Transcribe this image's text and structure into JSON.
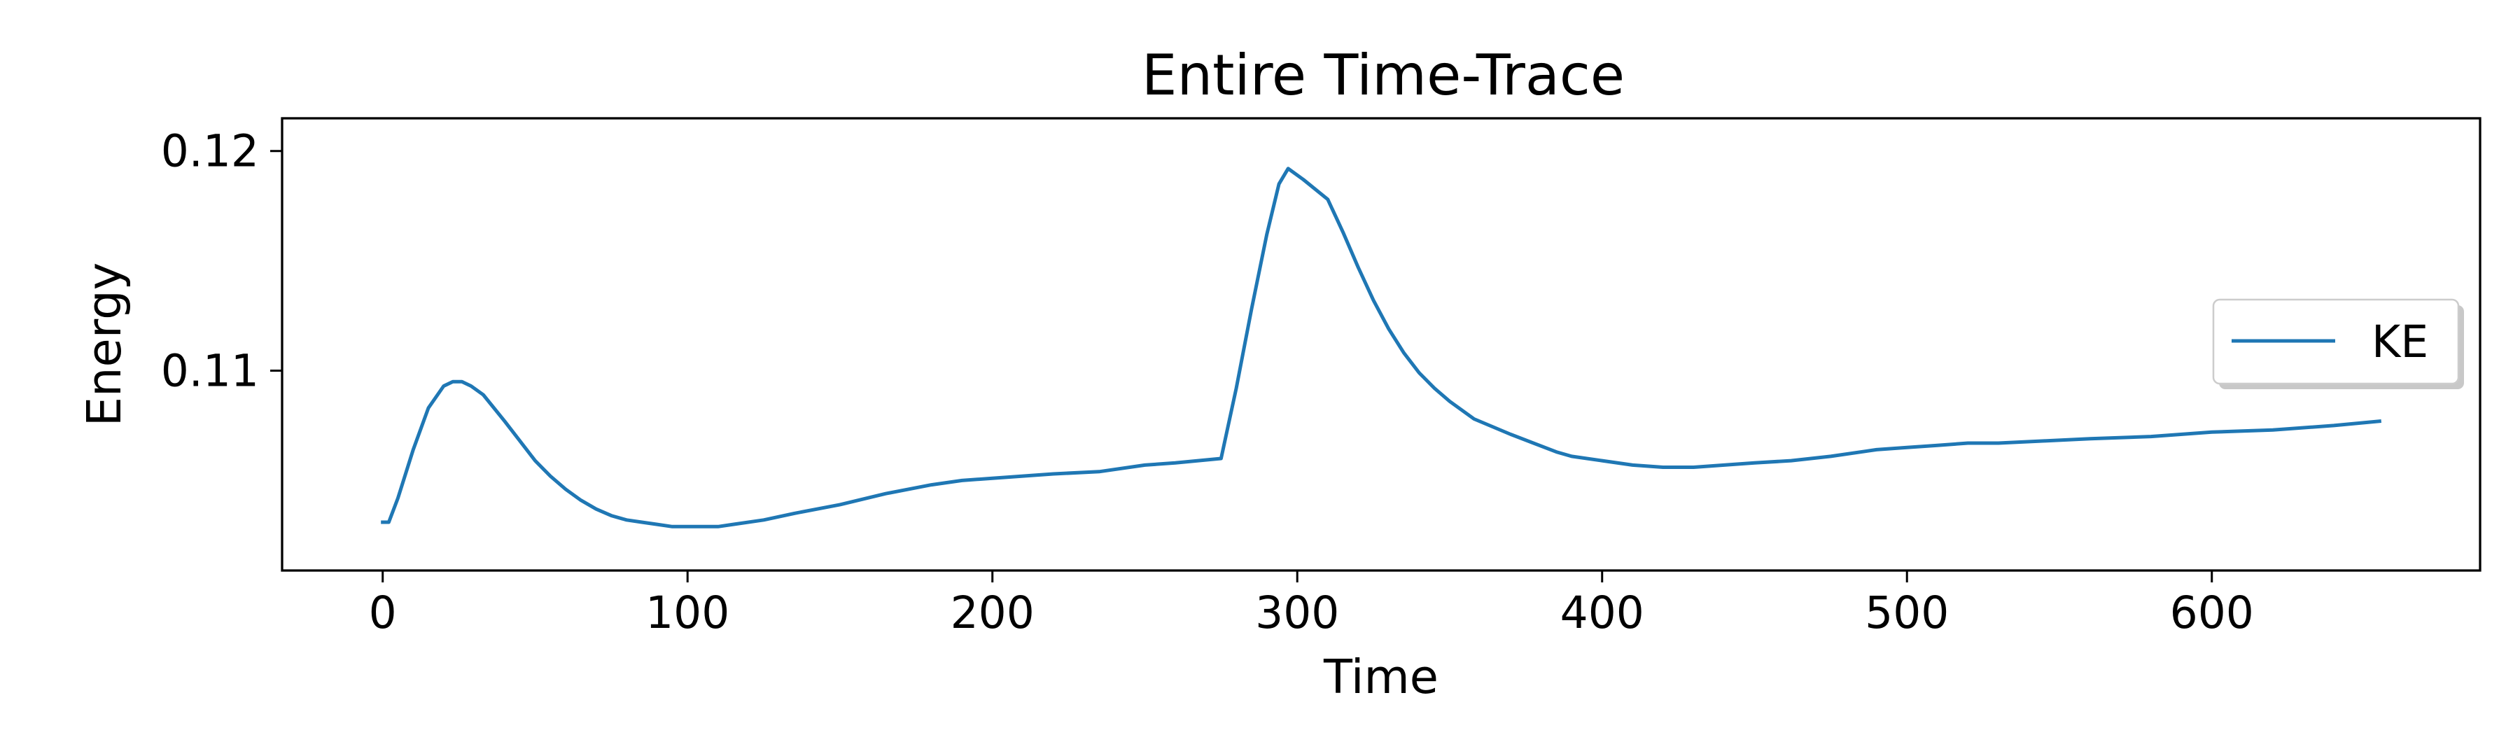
{
  "chart_data": {
    "type": "line",
    "title": "Entire Time-Trace",
    "xlabel": "Time",
    "ylabel": "Energy",
    "xlim": [
      -33,
      688
    ],
    "ylim": [
      0.1009,
      0.12149
    ],
    "xticks": [
      {
        "value": 0,
        "label": "0"
      },
      {
        "value": 100,
        "label": "100"
      },
      {
        "value": 200,
        "label": "200"
      },
      {
        "value": 300,
        "label": "300"
      },
      {
        "value": 400,
        "label": "400"
      },
      {
        "value": 500,
        "label": "500"
      },
      {
        "value": 600,
        "label": "600"
      }
    ],
    "yticks": [
      {
        "value": 0.11,
        "label": "0.11"
      },
      {
        "value": 0.12,
        "label": "0.12"
      }
    ],
    "grid": false,
    "legend": {
      "position": "center-right"
    },
    "series": [
      {
        "name": "KE",
        "color": "#1f77b4",
        "x": [
          0,
          2,
          5,
          10,
          15,
          20,
          23,
          26,
          29,
          33,
          40,
          45,
          50,
          55,
          60,
          65,
          70,
          75,
          80,
          85,
          90,
          95,
          100,
          105,
          110,
          115,
          125,
          135,
          150,
          165,
          180,
          190,
          200,
          210,
          220,
          235,
          250,
          260,
          275,
          280,
          285,
          290,
          294,
          297,
          302,
          310,
          315,
          320,
          325,
          330,
          335,
          340,
          345,
          350,
          358,
          370,
          385,
          390,
          400,
          410,
          420,
          430,
          440,
          450,
          462,
          475,
          490,
          500,
          510,
          520,
          530,
          545,
          560,
          580,
          600,
          620,
          640,
          655
        ],
        "y": [
          0.1031,
          0.1031,
          0.1042,
          0.1064,
          0.1083,
          0.1093,
          0.1095,
          0.1095,
          0.1093,
          0.1089,
          0.1077,
          0.1068,
          0.1059,
          0.1052,
          0.1046,
          0.1041,
          0.1037,
          0.1034,
          0.1032,
          0.1031,
          0.103,
          0.1029,
          0.1029,
          0.1029,
          0.1029,
          0.103,
          0.1032,
          0.1035,
          0.1039,
          0.1044,
          0.1048,
          0.105,
          0.1051,
          0.1052,
          0.1053,
          0.1054,
          0.1057,
          0.1058,
          0.106,
          0.1092,
          0.1128,
          0.1162,
          0.1185,
          0.1192,
          0.1187,
          0.1178,
          0.1163,
          0.1147,
          0.1132,
          0.1119,
          0.1108,
          0.1099,
          0.1092,
          0.1086,
          0.1078,
          0.1071,
          0.1063,
          0.1061,
          0.1059,
          0.1057,
          0.1056,
          0.1056,
          0.1057,
          0.1058,
          0.1059,
          0.1061,
          0.1064,
          0.1065,
          0.1066,
          0.1067,
          0.1067,
          0.1068,
          0.1069,
          0.107,
          0.1072,
          0.1073,
          0.1075,
          0.1077
        ]
      }
    ]
  }
}
